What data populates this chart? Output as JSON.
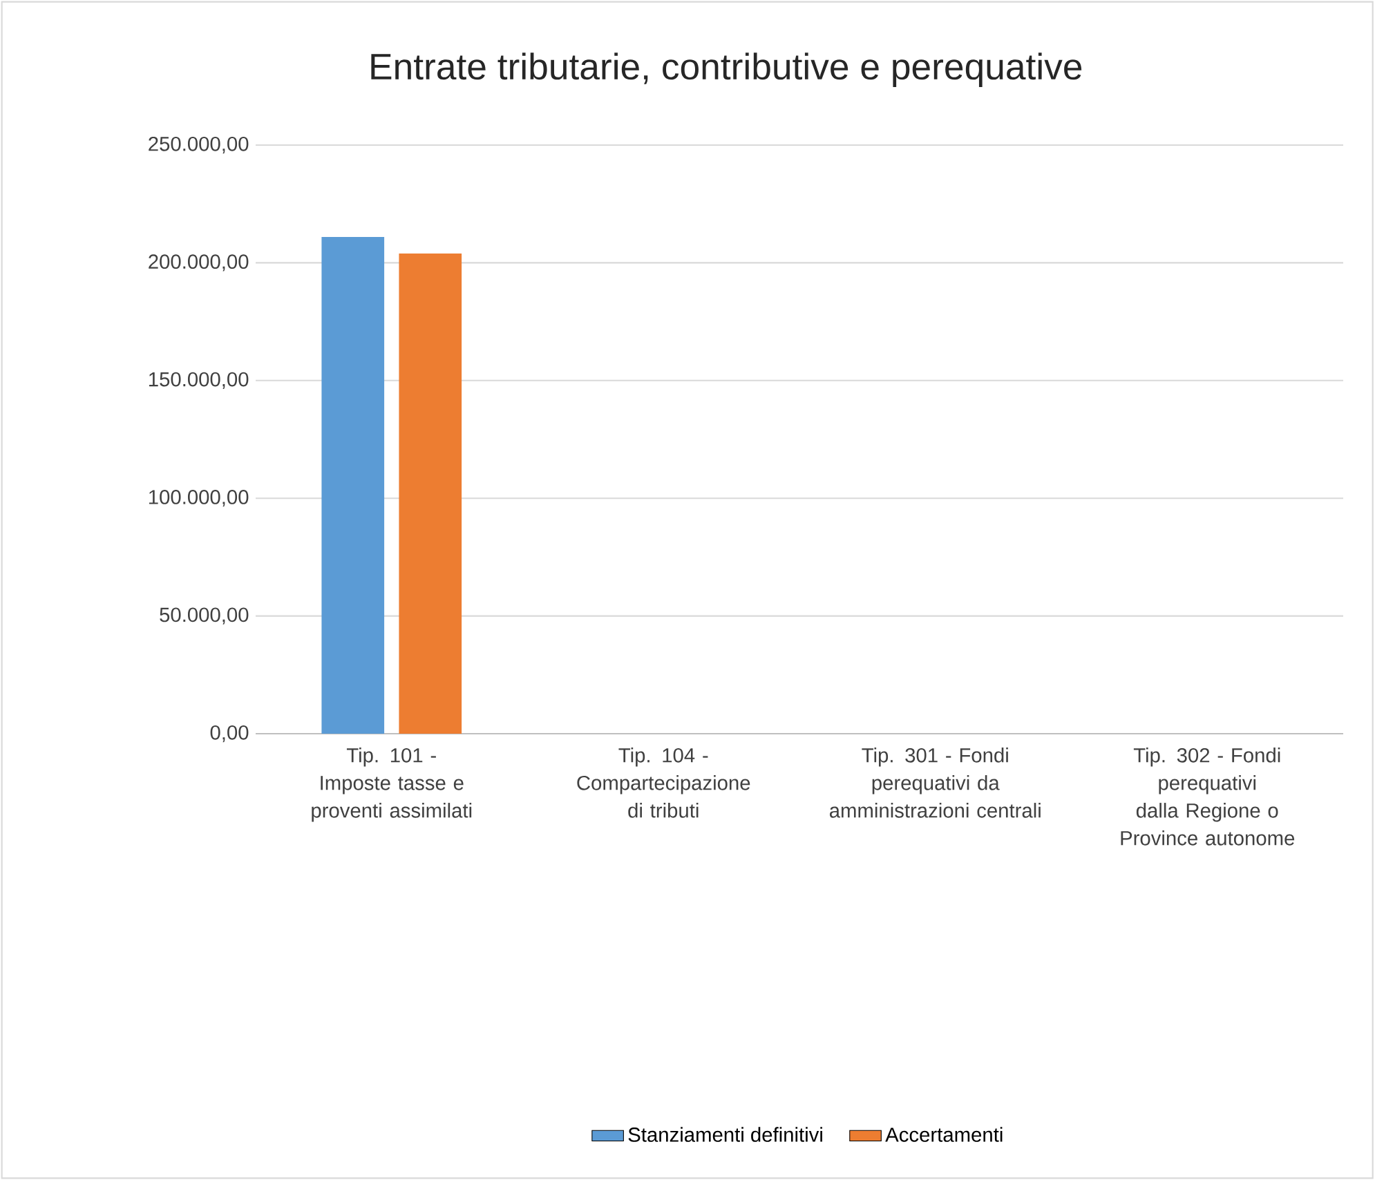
{
  "chart_data": {
    "type": "bar",
    "title": "Entrate tributarie, contributive e perequative",
    "categories": [
      "Tip. 101 - Imposte tasse e proventi assimilati",
      "Tip. 104 - Compartecipazione di tributi",
      "Tip. 301 - Fondi perequativi da amministrazioni centrali",
      "Tip. 302 - Fondi perequativi dalla Regione o Province autonome"
    ],
    "series": [
      {
        "name": "Stanziamenti definitivi",
        "color": "#5b9bd5",
        "values": [
          211000,
          0,
          0,
          0
        ]
      },
      {
        "name": "Accertamenti",
        "color": "#ed7d31",
        "values": [
          204000,
          0,
          0,
          0
        ]
      }
    ],
    "ylim": [
      0,
      250000
    ],
    "yticks": [
      {
        "value": 0,
        "label": "0,00"
      },
      {
        "value": 50000,
        "label": "50.000,00"
      },
      {
        "value": 100000,
        "label": "100.000,00"
      },
      {
        "value": 150000,
        "label": "150.000,00"
      },
      {
        "value": 200000,
        "label": "200.000,00"
      },
      {
        "value": 250000,
        "label": "250.000,00"
      }
    ],
    "grid": "y",
    "legend": "bottom"
  }
}
